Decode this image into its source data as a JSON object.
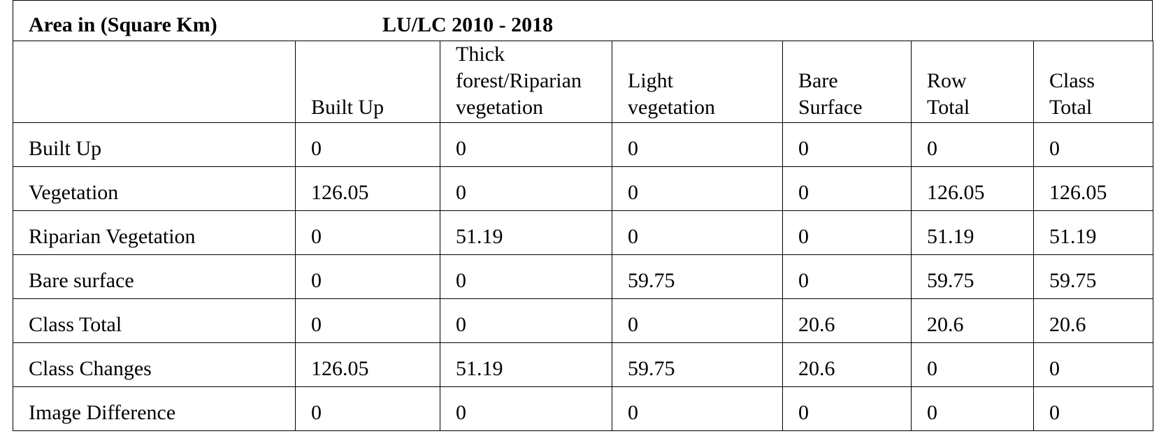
{
  "header": {
    "title": "Area in (Square Km)",
    "subtitle": "LU/LC 2010 - 2018"
  },
  "table": {
    "columns": [
      [
        "Built Up"
      ],
      [
        "Thick",
        "forest/Riparian",
        "vegetation"
      ],
      [
        "Light",
        "vegetation"
      ],
      [
        "Bare",
        "Surface"
      ],
      [
        "Row",
        "Total"
      ],
      [
        "Class",
        "Total"
      ]
    ],
    "rows": [
      [
        "Built Up",
        0,
        0,
        0,
        0,
        0,
        0
      ],
      [
        "Vegetation",
        126.05,
        0,
        0,
        0,
        126.05,
        126.05
      ],
      [
        "Riparian Vegetation",
        0,
        51.19,
        0,
        0,
        51.19,
        51.19
      ],
      [
        "Bare surface",
        0,
        0,
        59.75,
        0,
        59.75,
        59.75
      ],
      [
        "Class Total",
        0,
        0,
        0,
        20.6,
        20.6,
        20.6
      ],
      [
        "Class Changes",
        126.05,
        51.19,
        59.75,
        20.6,
        0,
        0
      ],
      [
        "Image Difference",
        0,
        0,
        0,
        0,
        0,
        0
      ]
    ]
  }
}
